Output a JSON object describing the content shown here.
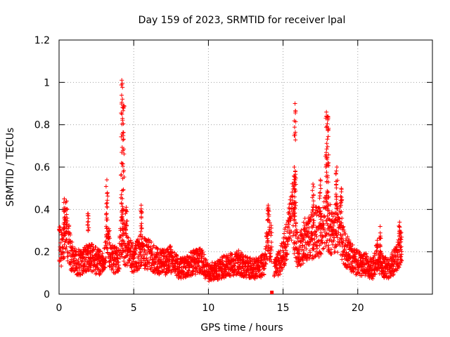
{
  "chart_data": {
    "type": "scatter",
    "title": "Day 159 of 2023, SRMTID for receiver lpal",
    "xlabel": "GPS time / hours",
    "ylabel": "SRMTID / TECUs",
    "xlim": [
      0,
      25
    ],
    "ylim": [
      0,
      1.2
    ],
    "xticks": [
      0,
      5,
      10,
      15,
      20
    ],
    "xtick_labels": [
      "0",
      "5",
      "10",
      "15",
      "20"
    ],
    "yticks": [
      0,
      0.2,
      0.4,
      0.6,
      0.8,
      1.0,
      1.2
    ],
    "ytick_labels": [
      "0",
      "0.2",
      "0.4",
      "0.6",
      "0.8",
      "1",
      "1.2"
    ],
    "grid": true,
    "marker": "+",
    "series": [
      {
        "name": "SRMTID",
        "color": "#ff0000",
        "envelope": {
          "x": [
            0,
            0.2,
            0.4,
            0.6,
            0.8,
            1.0,
            1.5,
            2.0,
            2.5,
            3.0,
            3.2,
            3.5,
            4.0,
            4.2,
            4.4,
            4.6,
            5.0,
            5.5,
            6.0,
            6.5,
            7.0,
            7.5,
            8.0,
            8.5,
            9.0,
            9.5,
            10.0,
            10.5,
            11.0,
            11.5,
            12.0,
            12.5,
            13.0,
            13.5,
            13.8,
            14.0,
            14.2
          ],
          "y": [
            0.28,
            0.22,
            0.32,
            0.28,
            0.2,
            0.17,
            0.16,
            0.2,
            0.17,
            0.15,
            0.3,
            0.18,
            0.17,
            0.33,
            0.25,
            0.22,
            0.18,
            0.22,
            0.2,
            0.17,
            0.16,
            0.18,
            0.13,
            0.14,
            0.16,
            0.17,
            0.11,
            0.12,
            0.14,
            0.15,
            0.16,
            0.14,
            0.13,
            0.14,
            0.15,
            0.32,
            0.25
          ]
        },
        "envelope2": {
          "x": [
            14.3,
            14.5,
            15.0,
            15.3,
            15.6,
            15.8,
            16.0,
            16.5,
            17.0,
            17.3,
            17.6,
            17.9,
            18.1,
            18.3,
            18.6,
            18.9,
            19.2,
            19.5,
            20.0,
            20.5,
            21.0,
            21.3,
            21.6,
            22.0,
            22.3,
            22.6,
            22.9
          ],
          "y": [
            0.13,
            0.13,
            0.2,
            0.3,
            0.42,
            0.3,
            0.22,
            0.28,
            0.3,
            0.33,
            0.3,
            0.38,
            0.35,
            0.3,
            0.37,
            0.3,
            0.22,
            0.19,
            0.16,
            0.15,
            0.13,
            0.2,
            0.15,
            0.13,
            0.15,
            0.2,
            0.24
          ]
        },
        "spikes": [
          {
            "x": 0.35,
            "peak": 0.45
          },
          {
            "x": 0.5,
            "peak": 0.44
          },
          {
            "x": 1.95,
            "peak": 0.38
          },
          {
            "x": 3.2,
            "peak": 0.54
          },
          {
            "x": 4.2,
            "peak": 1.01
          },
          {
            "x": 4.3,
            "peak": 0.89
          },
          {
            "x": 4.5,
            "peak": 0.41
          },
          {
            "x": 5.5,
            "peak": 0.42
          },
          {
            "x": 14.0,
            "peak": 0.42
          },
          {
            "x": 15.8,
            "peak": 0.9
          },
          {
            "x": 15.75,
            "peak": 0.6
          },
          {
            "x": 17.0,
            "peak": 0.52
          },
          {
            "x": 17.5,
            "peak": 0.54
          },
          {
            "x": 17.9,
            "peak": 0.86
          },
          {
            "x": 18.0,
            "peak": 0.84
          },
          {
            "x": 18.6,
            "peak": 0.6
          },
          {
            "x": 18.9,
            "peak": 0.5
          },
          {
            "x": 21.5,
            "peak": 0.32
          },
          {
            "x": 22.8,
            "peak": 0.34
          }
        ],
        "gap": [
          14.25,
          14.4
        ],
        "zero_point": {
          "x": 14.25,
          "y": 0.0
        },
        "x_start": 0.0,
        "x_end": 22.95
      }
    ]
  }
}
